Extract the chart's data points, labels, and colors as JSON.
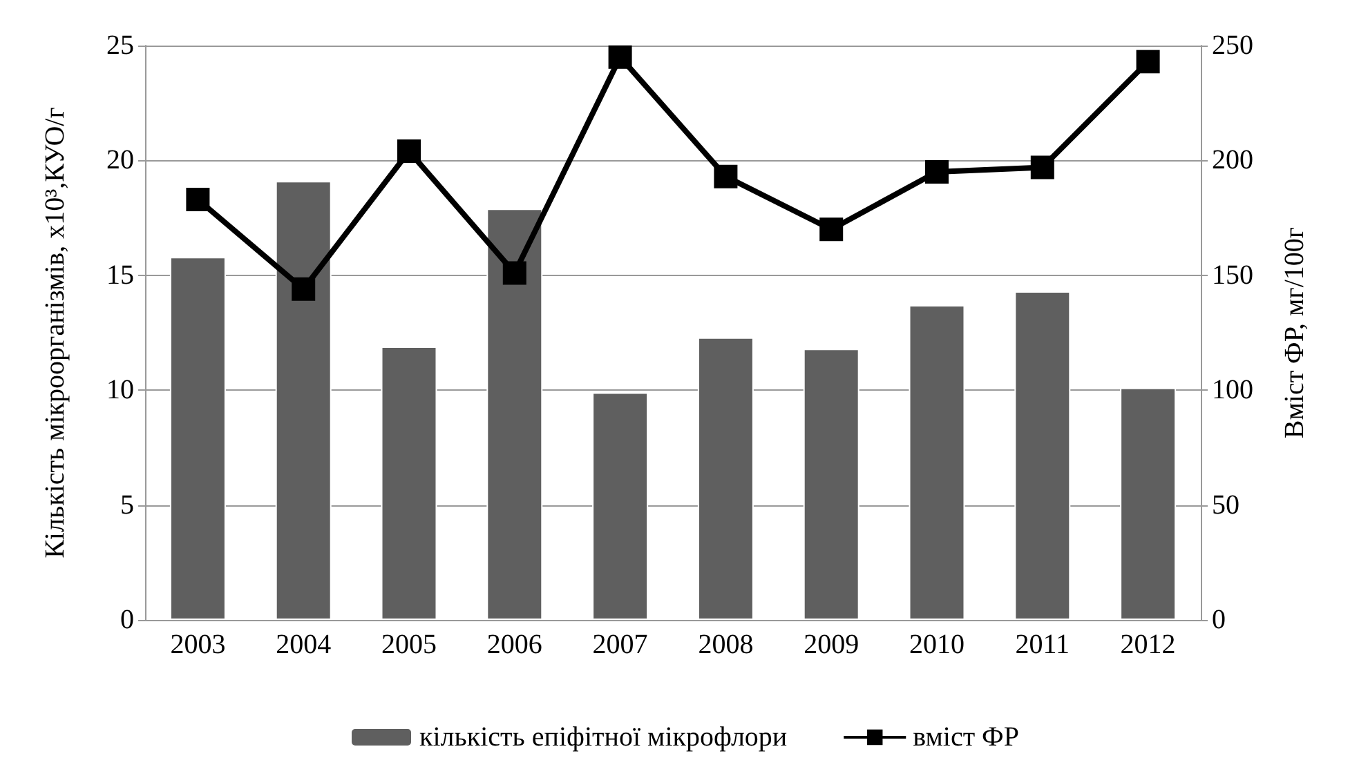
{
  "chart_data": {
    "type": "bar",
    "ylabel": "Кількість мікроорганізмів, х10³,КУО/г",
    "y2label": "Вміст ФР, мг/100г",
    "categories": [
      "2003",
      "2004",
      "2005",
      "2006",
      "2007",
      "2008",
      "2009",
      "2010",
      "2011",
      "2012"
    ],
    "series": [
      {
        "name": "кількість епіфітної мікрофлори",
        "color": "#5f5f5f",
        "values": [
          15.8,
          19.1,
          11.9,
          17.9,
          9.9,
          12.3,
          11.8,
          13.7,
          14.3,
          10.1
        ]
      },
      {
        "name": "вміст ФР",
        "type": "line",
        "axis": "y2",
        "color": "#000000",
        "marker": "square",
        "values": [
          183,
          144,
          204,
          151,
          245,
          193,
          170,
          195,
          197,
          243
        ]
      }
    ],
    "ylim": [
      0,
      25
    ],
    "yticks": [
      0,
      5,
      10,
      15,
      20,
      25
    ],
    "y2lim": [
      0,
      250
    ],
    "y2ticks": [
      0,
      50,
      100,
      150,
      200,
      250
    ],
    "grid": "y",
    "legend": "bottom"
  }
}
